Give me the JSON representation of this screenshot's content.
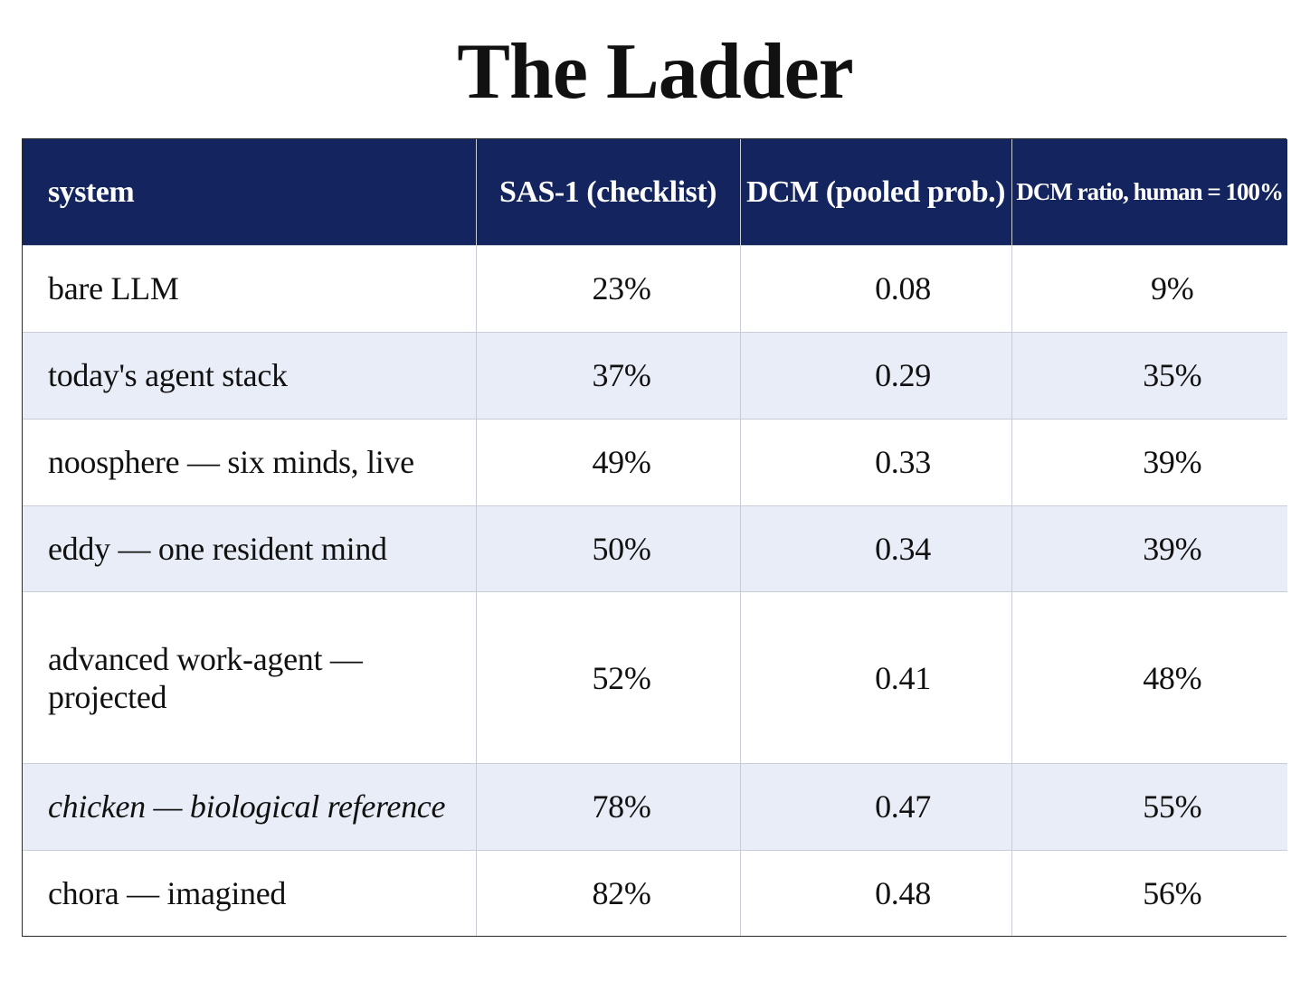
{
  "title": "The Ladder",
  "chart_data": {
    "type": "table",
    "title": "The Ladder",
    "columns": [
      "system",
      "SAS-1 (checklist)",
      "DCM (pooled prob.)",
      "DCM ratio, human = 100%"
    ],
    "rows": [
      {
        "system": "bare LLM",
        "sas1": "23%",
        "dcm": "0.08",
        "ratio": "9%",
        "italic": false
      },
      {
        "system": "today's agent stack",
        "sas1": "37%",
        "dcm": "0.29",
        "ratio": "35%",
        "italic": false
      },
      {
        "system": "noosphere — six minds, live",
        "sas1": "49%",
        "dcm": "0.33",
        "ratio": "39%",
        "italic": false
      },
      {
        "system": "eddy — one resident mind",
        "sas1": "50%",
        "dcm": "0.34",
        "ratio": "39%",
        "italic": false
      },
      {
        "system": "advanced work-agent — projected",
        "sas1": "52%",
        "dcm": "0.41",
        "ratio": "48%",
        "italic": false
      },
      {
        "system": "chicken — biological reference",
        "sas1": "78%",
        "dcm": "0.47",
        "ratio": "55%",
        "italic": true
      },
      {
        "system": "chora — imagined",
        "sas1": "82%",
        "dcm": "0.48",
        "ratio": "56%",
        "italic": false
      }
    ],
    "header_color": "#14245e",
    "stripe_color": "#e9edf7"
  }
}
